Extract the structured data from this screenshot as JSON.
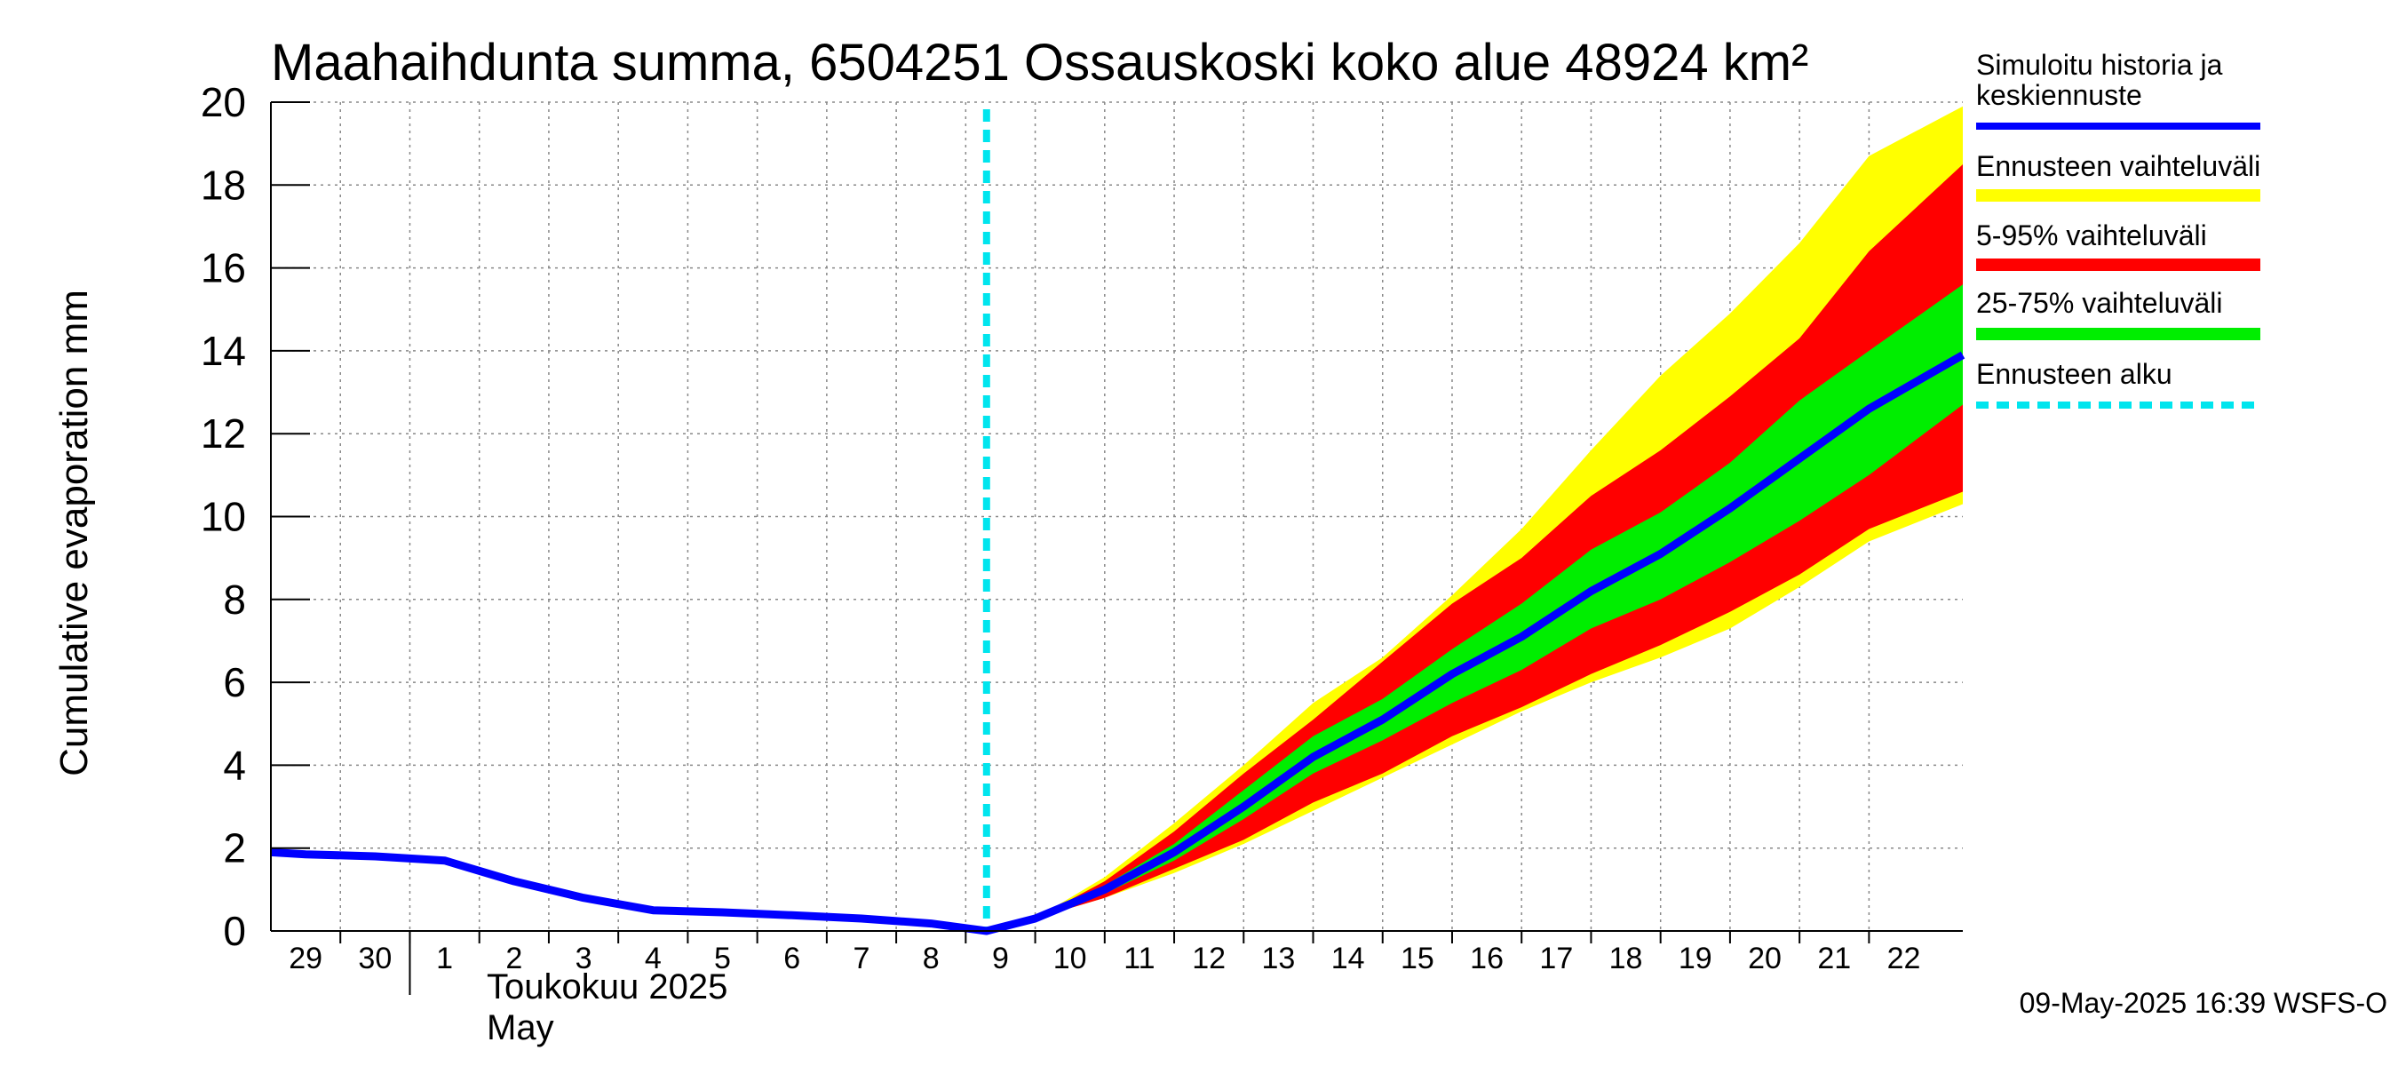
{
  "chart_data": {
    "type": "area",
    "title": "Maahaihdunta summa, 6504251 Ossauskoski koko alue 48924 km²",
    "ylabel": "Cumulative evaporation   mm",
    "ylim": [
      0,
      20
    ],
    "yticks": [
      0,
      2,
      4,
      6,
      8,
      10,
      12,
      14,
      16,
      18,
      20
    ],
    "xlim": [
      -10.5,
      13.85
    ],
    "x_ticks": [
      {
        "x": -10,
        "label": "29"
      },
      {
        "x": -9,
        "label": "30"
      },
      {
        "x": -8,
        "label": "1"
      },
      {
        "x": -7,
        "label": "2"
      },
      {
        "x": -6,
        "label": "3"
      },
      {
        "x": -5,
        "label": "4"
      },
      {
        "x": -4,
        "label": "5"
      },
      {
        "x": -3,
        "label": "6"
      },
      {
        "x": -2,
        "label": "7"
      },
      {
        "x": -1,
        "label": "8"
      },
      {
        "x": 0,
        "label": "9"
      },
      {
        "x": 1,
        "label": "10"
      },
      {
        "x": 2,
        "label": "11"
      },
      {
        "x": 3,
        "label": "12"
      },
      {
        "x": 4,
        "label": "13"
      },
      {
        "x": 5,
        "label": "14"
      },
      {
        "x": 6,
        "label": "15"
      },
      {
        "x": 7,
        "label": "16"
      },
      {
        "x": 8,
        "label": "17"
      },
      {
        "x": 9,
        "label": "18"
      },
      {
        "x": 10,
        "label": "19"
      },
      {
        "x": 11,
        "label": "20"
      },
      {
        "x": 12,
        "label": "21"
      },
      {
        "x": 13,
        "label": "22"
      }
    ],
    "month_label_fi": "Toukokuu  2025",
    "month_label_en": "May",
    "grid": true,
    "forecast_start_x": -0.2,
    "history": {
      "x": [
        -10.5,
        -10,
        -9,
        -8,
        -7,
        -6,
        -5,
        -4,
        -3,
        -2,
        -1,
        -0.2
      ],
      "y": [
        1.9,
        1.85,
        1.8,
        1.7,
        1.2,
        0.8,
        0.5,
        0.45,
        0.38,
        0.3,
        0.18,
        0.0
      ]
    },
    "forecast": {
      "x": [
        -0.2,
        0.5,
        1.5,
        2.5,
        3.5,
        4.5,
        5.5,
        6.5,
        7.5,
        8.5,
        9.5,
        10.5,
        11.5,
        12.5,
        13.85
      ],
      "median": [
        0.0,
        0.3,
        1.0,
        1.9,
        3.0,
        4.2,
        5.1,
        6.2,
        7.1,
        8.2,
        9.1,
        10.2,
        11.4,
        12.6,
        13.9
      ],
      "p25": [
        0.0,
        0.3,
        0.9,
        1.7,
        2.7,
        3.8,
        4.6,
        5.5,
        6.3,
        7.3,
        8.0,
        8.9,
        9.9,
        11.0,
        12.7
      ],
      "p75": [
        0.0,
        0.3,
        1.1,
        2.1,
        3.4,
        4.7,
        5.6,
        6.8,
        7.9,
        9.2,
        10.1,
        11.3,
        12.8,
        14.0,
        15.6
      ],
      "p05": [
        0.0,
        0.3,
        0.8,
        1.5,
        2.2,
        3.1,
        3.8,
        4.7,
        5.4,
        6.2,
        6.9,
        7.7,
        8.6,
        9.7,
        10.6
      ],
      "p95": [
        0.0,
        0.3,
        1.2,
        2.4,
        3.8,
        5.1,
        6.5,
        7.9,
        9.0,
        10.5,
        11.6,
        12.9,
        14.3,
        16.4,
        18.5
      ],
      "min": [
        0.0,
        0.3,
        0.8,
        1.4,
        2.1,
        2.9,
        3.7,
        4.5,
        5.3,
        6.0,
        6.6,
        7.3,
        8.3,
        9.4,
        10.3
      ],
      "max": [
        0.0,
        0.3,
        1.3,
        2.6,
        4.0,
        5.5,
        6.6,
        8.1,
        9.7,
        11.6,
        13.4,
        14.9,
        16.6,
        18.7,
        19.9
      ]
    },
    "legend": [
      {
        "label": "Simuloitu historia ja keskiennuste",
        "color": "#0000ff",
        "style": "line"
      },
      {
        "label": "Ennusteen vaihteluväli",
        "color": "#ffff00",
        "style": "band"
      },
      {
        "label": "5-95% vaihteluväli",
        "color": "#ff0000",
        "style": "band"
      },
      {
        "label": "25-75% vaihteluväli",
        "color": "#00ee00",
        "style": "band"
      },
      {
        "label": "Ennusteen alku",
        "color": "#00e5ee",
        "style": "dashed"
      }
    ],
    "colors": {
      "history_line": "#0000ff",
      "range_band": "#ffff00",
      "p5_95_band": "#ff0000",
      "p25_75_band": "#00ee00",
      "forecast_start": "#00e5ee"
    },
    "footer": "09-May-2025 16:39 WSFS-O"
  }
}
